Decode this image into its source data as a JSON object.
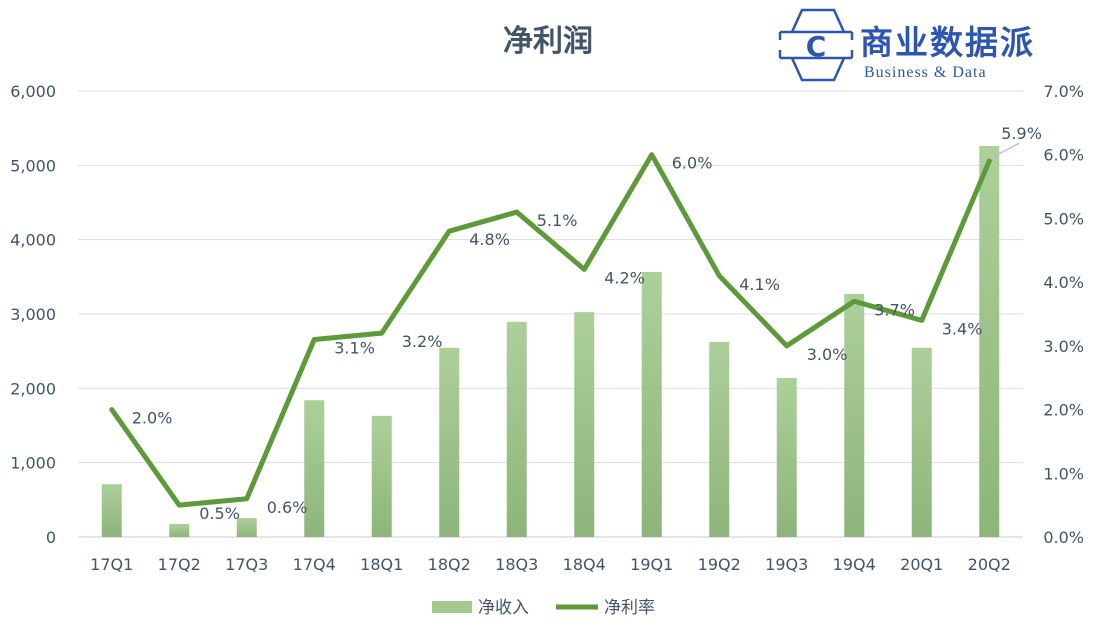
{
  "chart_data": {
    "type": "bar",
    "title": "净利润",
    "categories": [
      "17Q1",
      "17Q2",
      "17Q3",
      "17Q4",
      "18Q1",
      "18Q2",
      "18Q3",
      "18Q4",
      "19Q1",
      "19Q2",
      "19Q3",
      "19Q4",
      "20Q1",
      "20Q2"
    ],
    "series": [
      {
        "name": "净收入",
        "type": "bar",
        "axis": "left",
        "color": "#9fc68a",
        "values": [
          710,
          175,
          255,
          1840,
          1630,
          2545,
          2895,
          3025,
          3565,
          2625,
          2140,
          3270,
          2545,
          5260
        ]
      },
      {
        "name": "净利率",
        "type": "line",
        "axis": "right",
        "color": "#5e9a3a",
        "values": [
          2.0,
          0.5,
          0.6,
          3.1,
          3.2,
          4.8,
          5.1,
          4.2,
          6.0,
          4.1,
          3.0,
          3.7,
          3.4,
          5.9
        ],
        "labels": [
          "2.0%",
          "0.5%",
          "0.6%",
          "3.1%",
          "3.2%",
          "4.8%",
          "5.1%",
          "4.2%",
          "6.0%",
          "4.1%",
          "3.0%",
          "3.7%",
          "3.4%",
          "5.9%"
        ]
      }
    ],
    "y_left": {
      "lim": [
        0,
        6000
      ],
      "ticks": [
        "0",
        "1,000",
        "2,000",
        "3,000",
        "4,000",
        "5,000",
        "6,000"
      ]
    },
    "y_right": {
      "lim": [
        0,
        7
      ],
      "ticks": [
        "0.0%",
        "1.0%",
        "2.0%",
        "3.0%",
        "4.0%",
        "5.0%",
        "6.0%",
        "7.0%"
      ]
    },
    "grid": true,
    "legend": "bottom",
    "xlabel": "",
    "ylabel": ""
  },
  "logo": {
    "cn": "商业数据派",
    "en": "Business & Data",
    "letter": "C"
  },
  "colors": {
    "text": "#44546a",
    "grid": "#d9dde3",
    "logo": "#2e56b0"
  }
}
